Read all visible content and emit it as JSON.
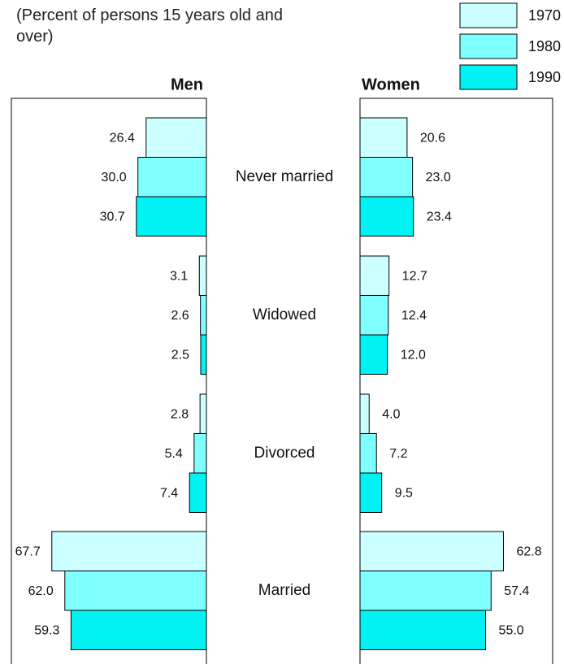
{
  "chart_data": {
    "type": "bar",
    "subtitle": "(Percent of persons 15 years old and over)",
    "categories": [
      "Never married",
      "Widowed",
      "Divorced",
      "Married"
    ],
    "series": [
      {
        "name": "1970",
        "color": "#ccffff"
      },
      {
        "name": "1980",
        "color": "#80ffff"
      },
      {
        "name": "1990",
        "color": "#00f2f2"
      }
    ],
    "panels": [
      {
        "title": "Men",
        "values": [
          [
            26.4,
            3.1,
            2.8,
            67.7
          ],
          [
            30.0,
            2.6,
            5.4,
            62.0
          ],
          [
            30.7,
            2.5,
            7.4,
            59.3
          ]
        ],
        "value_labels": [
          [
            "26.4",
            "3.1",
            "2.8",
            "67.7"
          ],
          [
            "30.0",
            "2.6",
            "5.4",
            "62.0"
          ],
          [
            "30.7",
            "2.5",
            "7.4",
            "59.3"
          ]
        ]
      },
      {
        "title": "Women",
        "values": [
          [
            20.6,
            12.7,
            4.0,
            62.8
          ],
          [
            23.0,
            12.4,
            7.2,
            57.4
          ],
          [
            23.4,
            12.0,
            9.5,
            55.0
          ]
        ],
        "value_labels": [
          [
            "20.6",
            "12.7",
            "4.0",
            "62.8"
          ],
          [
            "23.0",
            "12.4",
            "7.2",
            "57.4"
          ],
          [
            "23.4",
            "12.0",
            "9.5",
            "55.0"
          ]
        ]
      }
    ]
  }
}
